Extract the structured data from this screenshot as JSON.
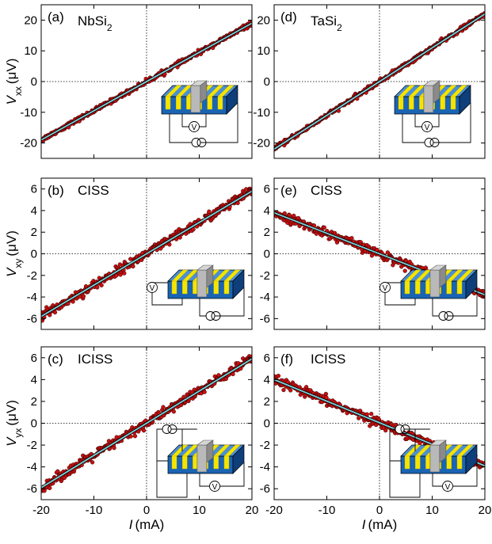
{
  "chart_data": [
    {
      "type": "scatter",
      "panel": "(a)",
      "material": "NbSi",
      "material_sub": "2",
      "label_kind": "material",
      "ylabel_main": "V",
      "ylabel_sub": "xx",
      "ylabel_unit": "(μV)",
      "xlabel_main": "I",
      "xlabel_unit": "(mA)",
      "xlim": [
        -20,
        20
      ],
      "ylim": [
        -25,
        25
      ],
      "yticks": [
        -20,
        -10,
        0,
        10,
        20
      ],
      "xticks": [
        -20,
        -10,
        0,
        10,
        20
      ],
      "show_xticklabels": false,
      "fit_line": {
        "x": [
          -20,
          20
        ],
        "y": [
          -19.0,
          19.0
        ]
      },
      "points": {
        "x_range": [
          -20,
          20
        ],
        "y_at_xmin": -19.0,
        "y_at_xmax": 19.0,
        "scatter": 0.35,
        "count": 400
      },
      "inset": {
        "type": "device-schematic",
        "configuration": "longitudinal",
        "meters": [
          "V",
          "I"
        ]
      }
    },
    {
      "type": "scatter",
      "panel": "(d)",
      "material": "TaSi",
      "material_sub": "2",
      "label_kind": "material",
      "ylabel_main": "",
      "ylabel_sub": "",
      "ylabel_unit": "",
      "xlabel_main": "I",
      "xlabel_unit": "(mA)",
      "xlim": [
        -20,
        20
      ],
      "ylim": [
        -25,
        25
      ],
      "yticks": [
        -20,
        -10,
        0,
        10,
        20
      ],
      "xticks": [
        -20,
        -10,
        0,
        10,
        20
      ],
      "show_xticklabels": false,
      "fit_line": {
        "x": [
          -20,
          20
        ],
        "y": [
          -22.0,
          22.0
        ]
      },
      "points": {
        "x_range": [
          -20,
          20
        ],
        "y_at_xmin": -22.0,
        "y_at_xmax": 22.0,
        "scatter": 0.35,
        "count": 400
      },
      "inset": {
        "type": "device-schematic",
        "configuration": "longitudinal",
        "meters": [
          "V",
          "I"
        ]
      }
    },
    {
      "type": "scatter",
      "panel": "(b)",
      "material": "CISS",
      "material_sub": "",
      "label_kind": "effect",
      "ylabel_main": "V",
      "ylabel_sub": "xy",
      "ylabel_unit": "(μV)",
      "xlabel_main": "I",
      "xlabel_unit": "(mA)",
      "xlim": [
        -20,
        20
      ],
      "ylim": [
        -7,
        7
      ],
      "yticks": [
        -6,
        -4,
        -2,
        0,
        2,
        4,
        6
      ],
      "xticks": [
        -20,
        -10,
        0,
        10,
        20
      ],
      "show_xticklabels": false,
      "fit_line": {
        "x": [
          -20,
          20
        ],
        "y": [
          -5.8,
          5.8
        ]
      },
      "points": {
        "x_range": [
          -20,
          20
        ],
        "y_at_xmin": -5.8,
        "y_at_xmax": 5.8,
        "scatter": 0.22,
        "count": 400
      },
      "inset": {
        "type": "device-schematic",
        "configuration": "transverse-voltage",
        "meters": [
          "V",
          "I"
        ]
      }
    },
    {
      "type": "scatter",
      "panel": "(e)",
      "material": "CISS",
      "material_sub": "",
      "label_kind": "effect",
      "ylabel_main": "",
      "ylabel_sub": "",
      "ylabel_unit": "",
      "xlabel_main": "I",
      "xlabel_unit": "(mA)",
      "xlim": [
        -20,
        20
      ],
      "ylim": [
        -7,
        7
      ],
      "yticks": [
        -6,
        -4,
        -2,
        0,
        2,
        4,
        6
      ],
      "xticks": [
        -20,
        -10,
        0,
        10,
        20
      ],
      "show_xticklabels": false,
      "fit_line": {
        "x": [
          -20,
          20
        ],
        "y": [
          3.8,
          -3.8
        ]
      },
      "points": {
        "x_range": [
          -20,
          20
        ],
        "y_at_xmin": 3.8,
        "y_at_xmax": -3.8,
        "scatter": 0.2,
        "count": 400
      },
      "inset": {
        "type": "device-schematic",
        "configuration": "transverse-voltage",
        "meters": [
          "V",
          "I"
        ]
      }
    },
    {
      "type": "scatter",
      "panel": "(c)",
      "material": "ICISS",
      "material_sub": "",
      "label_kind": "effect",
      "ylabel_main": "V",
      "ylabel_sub": "yx",
      "ylabel_unit": "(μV)",
      "xlabel_main": "I",
      "xlabel_unit": "(mA)",
      "xlim": [
        -20,
        20
      ],
      "ylim": [
        -7,
        7
      ],
      "yticks": [
        -6,
        -4,
        -2,
        0,
        2,
        4,
        6
      ],
      "xticks": [
        -20,
        -10,
        0,
        10,
        20
      ],
      "show_xticklabels": true,
      "fit_line": {
        "x": [
          -20,
          20
        ],
        "y": [
          -5.9,
          5.9
        ]
      },
      "points": {
        "x_range": [
          -20,
          20
        ],
        "y_at_xmin": -5.9,
        "y_at_xmax": 5.9,
        "scatter": 0.22,
        "count": 400
      },
      "inset": {
        "type": "device-schematic",
        "configuration": "transverse-current",
        "meters": [
          "I",
          "V"
        ]
      }
    },
    {
      "type": "scatter",
      "panel": "(f)",
      "material": "ICISS",
      "material_sub": "",
      "label_kind": "effect",
      "ylabel_main": "",
      "ylabel_sub": "",
      "ylabel_unit": "",
      "xlabel_main": "I",
      "xlabel_unit": "(mA)",
      "xlim": [
        -20,
        20
      ],
      "ylim": [
        -7,
        7
      ],
      "yticks": [
        -6,
        -4,
        -2,
        0,
        2,
        4,
        6
      ],
      "xticks": [
        -20,
        -10,
        0,
        10,
        20
      ],
      "show_xticklabels": true,
      "fit_line": {
        "x": [
          -20,
          20
        ],
        "y": [
          4.0,
          -3.9
        ]
      },
      "points": {
        "x_range": [
          -20,
          20
        ],
        "y_at_xmin": 4.0,
        "y_at_xmax": -3.9,
        "scatter": 0.2,
        "count": 400
      },
      "inset": {
        "type": "device-schematic",
        "configuration": "transverse-current",
        "meters": [
          "I",
          "V"
        ]
      }
    }
  ],
  "colors": {
    "points_fill": "#cc1010",
    "points_edge": "#2a0000",
    "fit_line": "#7fd3dc",
    "fit_line_core": "#000000",
    "device_blue": "#1a64b4",
    "device_blue_dark": "#0e3f7a",
    "device_blue_top": "#4a8fd6",
    "stripe_yellow": "#f5e400",
    "stripe_yellow_dark": "#c9b800",
    "block_gray": "#b9b9b9",
    "block_gray_dark": "#8a8a8a"
  }
}
